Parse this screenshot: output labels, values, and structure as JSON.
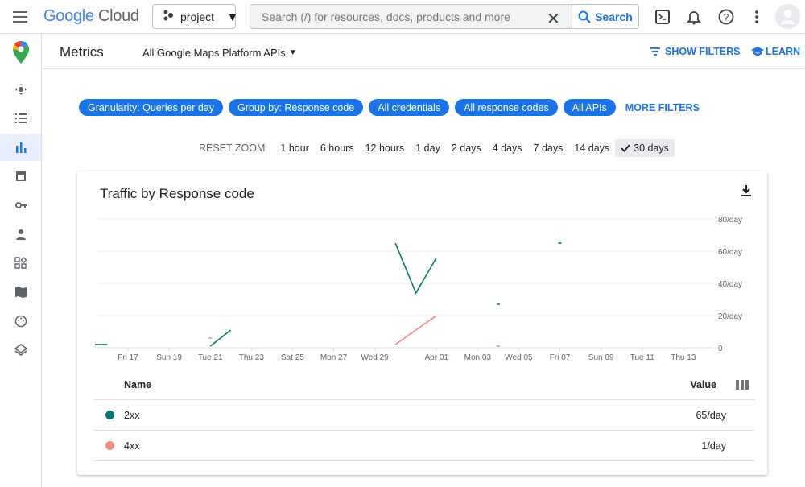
{
  "header": {
    "logo_text_google": "Google",
    "logo_text_cloud": "Cloud",
    "project": "project",
    "search_placeholder": "Search (/) for resources, docs, products and more",
    "search_button": "Search"
  },
  "sidebar": {
    "items": [
      {
        "icon": "move-icon"
      },
      {
        "icon": "list-icon"
      },
      {
        "icon": "bar-chart-icon",
        "active": true
      },
      {
        "icon": "quota-icon"
      },
      {
        "icon": "key-icon"
      },
      {
        "icon": "person-icon"
      },
      {
        "icon": "widgets-icon"
      },
      {
        "icon": "map-icon"
      },
      {
        "icon": "palette-icon"
      },
      {
        "icon": "layers-icon"
      }
    ]
  },
  "subbar": {
    "title": "Metrics",
    "api_selector": "All Google Maps Platform APIs",
    "show_filters": "SHOW FILTERS",
    "learn": "LEARN"
  },
  "filters": {
    "chips": [
      "Granularity: Queries per day",
      "Group by: Response code",
      "All credentials",
      "All response codes",
      "All APIs"
    ],
    "more": "MORE FILTERS"
  },
  "zoom": {
    "reset": "RESET ZOOM",
    "options": [
      "1 hour",
      "6 hours",
      "12 hours",
      "1 day",
      "2 days",
      "4 days",
      "7 days",
      "14 days",
      "30 days"
    ],
    "selected": "30 days"
  },
  "card": {
    "title": "Traffic by Response code"
  },
  "chart_data": {
    "type": "line",
    "title": "Traffic by Response code",
    "xlim": [
      "Mar 15",
      "Apr 14"
    ],
    "ylim": [
      0,
      80
    ],
    "grid": true,
    "x_ticks": [
      "Fri 17",
      "Sun 19",
      "Tue 21",
      "Thu 23",
      "Sat 25",
      "Mon 27",
      "Wed 29",
      "Apr 01",
      "Mon 03",
      "Wed 05",
      "Fri 07",
      "Sun 09",
      "Tue 11",
      "Thu 13"
    ],
    "y_ticks": [
      "0",
      "20/day",
      "40/day",
      "60/day",
      "80/day"
    ],
    "series": [
      {
        "name": "2xx",
        "color": "#00796b",
        "segments": [
          [
            [
              "Mar 15",
              2
            ],
            [
              "Mar 16",
              2
            ]
          ],
          [
            [
              "Mar 21",
              1
            ],
            [
              "Mar 22",
              11
            ]
          ],
          [
            [
              "Mar 30",
              65
            ],
            [
              "Mar 31",
              34
            ],
            [
              "Apr 01",
              56
            ]
          ],
          [
            [
              "Apr 04",
              27
            ]
          ],
          [
            [
              "Apr 07",
              65
            ]
          ]
        ]
      },
      {
        "name": "4xx",
        "color": "#f28b82",
        "segments": [
          [
            [
              "Mar 21",
              6
            ]
          ],
          [
            [
              "Mar 30",
              2
            ],
            [
              "Apr 01",
              20
            ]
          ],
          [
            [
              "Apr 04",
              1
            ]
          ]
        ]
      }
    ]
  },
  "table": {
    "headers": {
      "name": "Name",
      "value": "Value"
    },
    "rows": [
      {
        "name": "2xx",
        "value": "65/day",
        "color": "#00796b"
      },
      {
        "name": "4xx",
        "value": "1/day",
        "color": "#f28b82"
      }
    ]
  }
}
